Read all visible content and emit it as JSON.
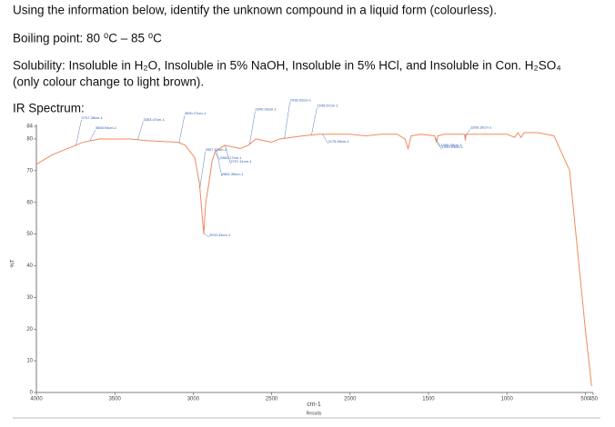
{
  "document": {
    "question": "Using the information below, identify the unknown compound in a liquid form (colourless).",
    "boiling_point": "Boiling point: 80 ⁰C – 85 ⁰C",
    "solubility_1": "Solubility: Insoluble in H₂O, Insoluble in 5% NaOH, Insoluble in 5% HCl, and Insoluble in Con. H₂SO₄",
    "solubility_2": "(only colour change to light brown).",
    "ir_heading": "IR Spectrum:"
  },
  "chart_data": {
    "type": "line",
    "x_label": "cm-1",
    "y_label": "%T",
    "footer": "Results",
    "color": "#f08a5d",
    "xlim": [
      4000,
      450
    ],
    "ylim": [
      0,
      84
    ],
    "xticks": [
      4000,
      3500,
      3000,
      2500,
      2000,
      1500,
      1000,
      500,
      450
    ],
    "yticks": [
      0,
      10,
      20,
      30,
      40,
      50,
      60,
      70,
      80,
      84
    ],
    "x": [
      4000,
      3900,
      3800,
      3700,
      3600,
      3400,
      3300,
      3100,
      3050,
      2990,
      2960,
      2933,
      2920,
      2900,
      2880,
      2860,
      2800,
      2700,
      2650,
      2600,
      2500,
      2450,
      2300,
      2200,
      2100,
      2000,
      1900,
      1800,
      1700,
      1650,
      1630,
      1610,
      1550,
      1460,
      1450,
      1440,
      1400,
      1270,
      1265,
      1260,
      1100,
      1000,
      950,
      930,
      910,
      890,
      850,
      800,
      700,
      600,
      500,
      460
    ],
    "y": [
      72,
      75,
      77,
      79,
      80,
      80,
      79.5,
      79,
      78,
      74,
      66,
      50,
      60,
      66,
      73,
      76,
      78,
      77,
      78,
      80,
      79,
      80,
      81,
      81.5,
      81.5,
      81.5,
      81,
      81.5,
      81.5,
      80,
      77,
      81,
      81.5,
      81,
      79,
      81,
      81.5,
      81.5,
      79.5,
      81.5,
      81.5,
      81.5,
      80.5,
      82,
      80.5,
      82,
      82,
      82,
      81,
      70,
      20,
      2
    ],
    "peaks": [
      {
        "x": 3747.38,
        "label": "3747.38cm-1"
      },
      {
        "x": 3658.94,
        "label": "3658.94cm-1"
      },
      {
        "x": 3353.47,
        "label": "3353.47cm-1"
      },
      {
        "x": 3090.27,
        "label": "3090.27cm-1"
      },
      {
        "x": 2957.57,
        "label": "2957.57cm-1"
      },
      {
        "x": 2933.33,
        "label": "2933.33cm-1"
      },
      {
        "x": 2862.17,
        "label": "2862.17cm-1"
      },
      {
        "x": 2852.35,
        "label": "2852.35cm-1"
      },
      {
        "x": 2797.41,
        "label": "2797.41cm-1"
      },
      {
        "x": 2640.33,
        "label": "2640.33cm-1"
      },
      {
        "x": 2418.52,
        "label": "2418.52cm-1"
      },
      {
        "x": 2245.67,
        "label": "2245.67cm-1"
      },
      {
        "x": 2175.65,
        "label": "2175.65cm-1"
      },
      {
        "x": 1456.58,
        "label": "1456.58cm-1"
      },
      {
        "x": 1449.63,
        "label": "1449.63cm-1"
      },
      {
        "x": 1268.19,
        "label": "1268.19cm-1"
      }
    ]
  }
}
